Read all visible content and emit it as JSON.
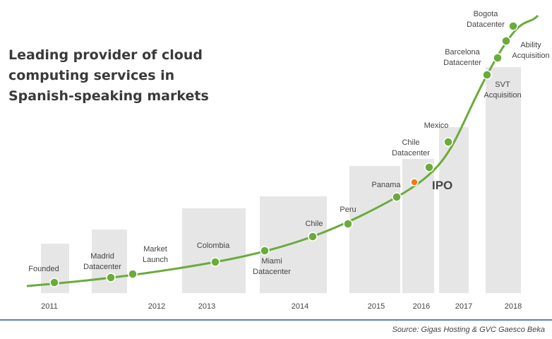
{
  "title": [
    "Leading provider of cloud",
    "computing services in",
    "Spanish-speaking markets"
  ],
  "milestones": [
    {
      "label": [
        "Founded"
      ]
    },
    {
      "label": [
        "Madrid",
        "Datacenter"
      ]
    },
    {
      "label": [
        "Market",
        "Launch"
      ]
    },
    {
      "label": [
        "Colombia"
      ]
    },
    {
      "label": [
        "Miami",
        "Datacenter"
      ]
    },
    {
      "label": [
        "Chile"
      ]
    },
    {
      "label": [
        "Peru"
      ]
    },
    {
      "label": [
        "Panama"
      ]
    },
    {
      "label": [
        "IPO"
      ]
    },
    {
      "label": [
        "Chile",
        "Datacenter"
      ]
    },
    {
      "label": [
        "Mexico"
      ]
    },
    {
      "label": [
        "Barcelona",
        "Datacenter"
      ]
    },
    {
      "label": [
        "SVT",
        "Acquisition"
      ]
    },
    {
      "label": [
        "Ability",
        "Acquisition"
      ]
    },
    {
      "label": [
        "Bogota",
        "Datacenter"
      ]
    }
  ],
  "years": [
    "2011",
    "2012",
    "2013",
    "2014",
    "2015",
    "2016",
    "2017",
    "2018"
  ],
  "source": "Source: Gigas Hosting & GVC Gaesco Beka"
}
